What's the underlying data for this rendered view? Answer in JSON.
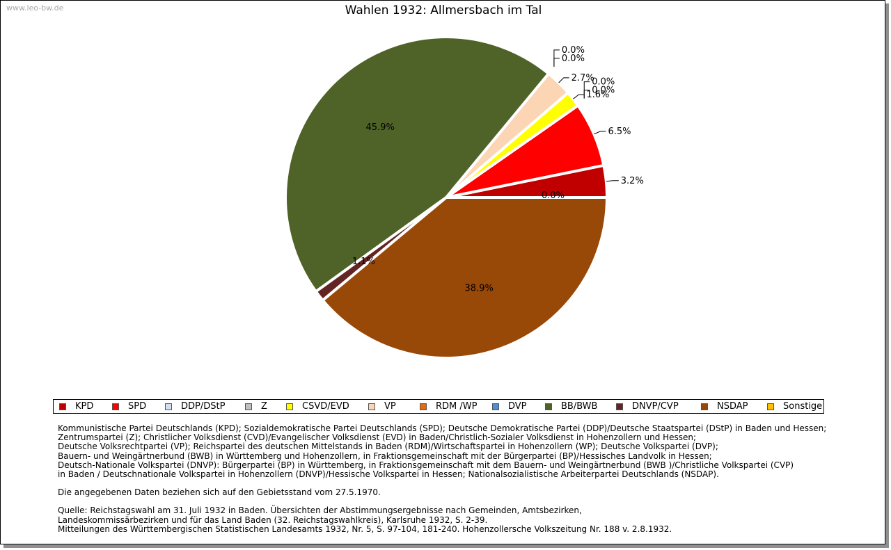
{
  "watermark": "www.leo-bw.de",
  "chart_data": {
    "type": "pie",
    "title": "Wahlen 1932: Allmersbach im Tal",
    "slices": [
      {
        "label": "KPD",
        "value": 3.2,
        "display": "3.2%",
        "color": "#c00000"
      },
      {
        "label": "SPD",
        "value": 6.5,
        "display": "6.5%",
        "color": "#ff0000"
      },
      {
        "label": "DDP/DStP",
        "value": 0.0,
        "display": "0.0%",
        "color": "#d3def0"
      },
      {
        "label": "Z",
        "value": 0.0,
        "display": "0.0%",
        "color": "#c0c0c0"
      },
      {
        "label": "CSVD/EVD",
        "value": 1.6,
        "display": "1.6%",
        "color": "#ffff00"
      },
      {
        "label": "VP",
        "value": 2.7,
        "display": "2.7%",
        "color": "#fcd5b5"
      },
      {
        "label": "RDM /WP",
        "value": 0.0,
        "display": "0.0%",
        "color": "#e46c0a"
      },
      {
        "label": "DVP",
        "value": 0.0,
        "display": "0.0%",
        "color": "#4f8fd6"
      },
      {
        "label": "BB/BWB",
        "value": 45.9,
        "display": "45.9%",
        "color": "#4f6228"
      },
      {
        "label": "DNVP/CVP",
        "value": 1.1,
        "display": "1.1%",
        "color": "#632523"
      },
      {
        "label": "NSDAP",
        "value": 38.9,
        "display": "38.9%",
        "color": "#984807"
      },
      {
        "label": "Sonstige",
        "value": 0.0,
        "display": "0.0%",
        "color": "#ffc000"
      }
    ],
    "legend_position": "bottom"
  },
  "notes": {
    "parties": [
      "Kommunistische Partei Deutschlands (KPD); Sozialdemokratische Partei Deutschlands (SPD); Deutsche Demokratische Partei (DDP)/Deutsche Staatspartei (DStP) in Baden und Hessen;",
      "Zentrumspartei (Z); Christlicher Volksdienst (CVD)/Evangelischer Volksdienst (EVD) in Baden/Christlich-Sozialer Volksdienst in Hohenzollern und Hessen;",
      "Deutsche Volksrechtpartei (VP); Reichspartei des deutschen Mittelstands in Baden (RDM)/Wirtschaftspartei in Hohenzollern (WP); Deutsche Volkspartei (DVP);",
      "Bauern- und Weingärtnerbund (BWB) in Württemberg und Hohenzollern, in Fraktionsgemeinschaft mit der Bürgerpartei (BP)/Hessisches Landvolk in Hessen;",
      "Deutsch-Nationale Volkspartei (DNVP): Bürgerpartei (BP) in Württemberg, in Fraktionsgemeinschaft mit dem Bauern- und Weingärtnerbund (BWB )/Christliche Volkspartei (CVP)",
      "in Baden / Deutschnationale Volkspartei in Hohenzollern (DNVP)/Hessische Volkspartei in Hessen; Nationalsozialistische Arbeiterpartei Deutschlands (NSDAP)."
    ],
    "territory": "Die angegebenen Daten beziehen sich auf den Gebietsstand vom 27.5.1970.",
    "sources": [
      "Quelle: Reichstagswahl am 31. Juli 1932 in Baden. Übersichten der Abstimmungsergebnisse nach Gemeinden, Amtsbezirken,",
      "Landeskommissärbezirken und für das Land Baden (32. Reichstagswahlkreis), Karlsruhe 1932, S. 2-39.",
      "Mitteilungen des Württembergischen Statistischen Landesamts 1932, Nr. 5, S. 97-104, 181-240. Hohenzollersche Volkszeitung Nr. 188 v. 2.8.1932."
    ]
  }
}
